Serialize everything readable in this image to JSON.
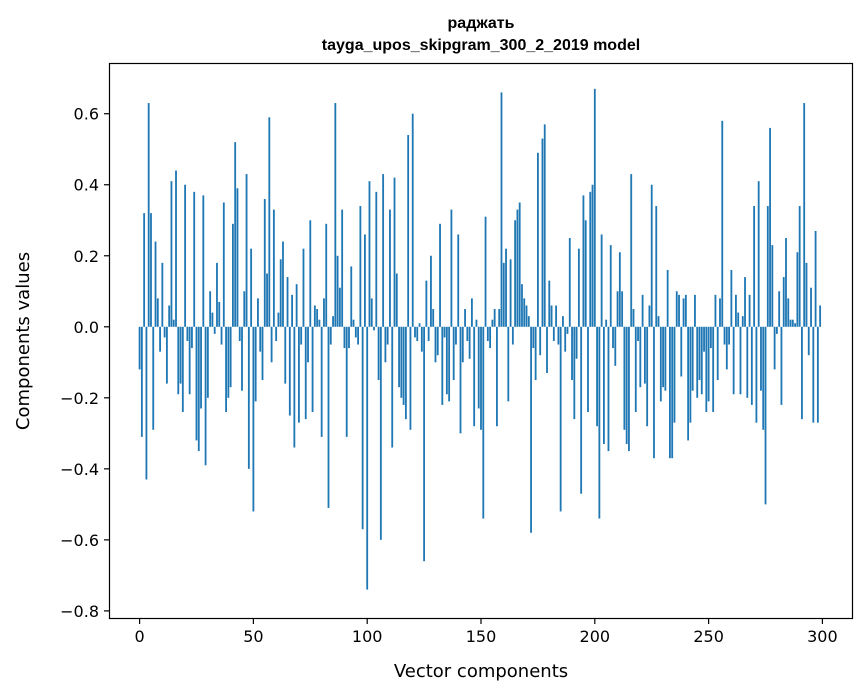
{
  "chart_data": {
    "type": "bar",
    "title": "раджать",
    "subtitle": "tayga_upos_skipgram_300_2_2019 model",
    "xlabel": "Vector components",
    "ylabel": "Components values",
    "xlim": [
      -13,
      313
    ],
    "ylim": [
      -0.82,
      0.74
    ],
    "xticks": [
      0,
      50,
      100,
      150,
      200,
      250,
      300
    ],
    "yticks": [
      -0.8,
      -0.6,
      -0.4,
      -0.2,
      0.0,
      0.2,
      0.4,
      0.6
    ],
    "ytick_labels": [
      "−0.8",
      "−0.6",
      "−0.4",
      "−0.2",
      "0.0",
      "0.2",
      "0.4",
      "0.6"
    ],
    "bar_color": "#1f77b4",
    "grid": false,
    "x": "0..299",
    "values": [
      -0.12,
      -0.31,
      0.32,
      -0.43,
      0.63,
      0.32,
      -0.29,
      0.24,
      0.08,
      -0.07,
      0.18,
      -0.03,
      -0.16,
      0.06,
      0.41,
      0.02,
      0.44,
      -0.19,
      -0.16,
      -0.24,
      0.4,
      -0.04,
      -0.19,
      -0.06,
      0.38,
      -0.32,
      -0.35,
      -0.23,
      0.37,
      -0.39,
      -0.2,
      0.1,
      0.04,
      -0.02,
      0.18,
      0.07,
      -0.05,
      0.35,
      -0.24,
      -0.2,
      -0.17,
      0.29,
      0.52,
      0.39,
      -0.04,
      -0.18,
      0.1,
      0.43,
      -0.4,
      0.22,
      -0.52,
      -0.21,
      0.08,
      -0.07,
      -0.15,
      0.36,
      0.15,
      0.59,
      -0.1,
      0.33,
      -0.04,
      0.04,
      0.19,
      0.24,
      -0.16,
      0.14,
      -0.25,
      0.09,
      -0.34,
      0.12,
      -0.27,
      -0.05,
      0.22,
      -0.26,
      -0.1,
      0.3,
      -0.24,
      0.06,
      0.05,
      0.02,
      -0.31,
      0.08,
      0.29,
      -0.51,
      -0.05,
      0.03,
      0.63,
      0.2,
      0.11,
      0.33,
      -0.06,
      -0.31,
      -0.06,
      0.17,
      0.02,
      -0.03,
      -0.05,
      0.34,
      -0.57,
      0.26,
      -0.74,
      0.41,
      0.08,
      -0.01,
      0.38,
      -0.15,
      -0.6,
      0.43,
      -0.1,
      -0.05,
      0.33,
      -0.34,
      0.42,
      0.15,
      -0.17,
      -0.2,
      -0.22,
      -0.26,
      0.54,
      -0.29,
      0.6,
      -0.03,
      -0.04,
      0.01,
      -0.07,
      -0.66,
      0.13,
      -0.04,
      0.2,
      0.05,
      -0.1,
      -0.08,
      0.29,
      -0.22,
      -0.03,
      -0.19,
      -0.21,
      0.33,
      -0.15,
      -0.05,
      0.26,
      -0.3,
      -0.1,
      0.05,
      -0.04,
      -0.09,
      0.08,
      -0.28,
      0.02,
      -0.23,
      -0.29,
      -0.54,
      0.31,
      -0.04,
      -0.06,
      0.02,
      0.05,
      -0.28,
      0.05,
      0.66,
      0.18,
      0.22,
      -0.21,
      0.19,
      -0.05,
      0.3,
      0.33,
      0.35,
      0.12,
      0.08,
      0.06,
      0.03,
      -0.58,
      -0.06,
      -0.15,
      0.49,
      -0.08,
      0.53,
      0.57,
      -0.13,
      0.13,
      0.06,
      -0.04,
      0.06,
      -0.05,
      -0.52,
      0.03,
      -0.07,
      -0.02,
      0.25,
      -0.15,
      -0.26,
      -0.09,
      0.22,
      -0.47,
      0.37,
      0.3,
      -0.24,
      0.38,
      0.4,
      0.67,
      -0.28,
      -0.54,
      0.26,
      -0.33,
      0.02,
      -0.35,
      0.23,
      -0.06,
      -0.11,
      0.1,
      0.21,
      0.1,
      -0.29,
      -0.33,
      -0.35,
      0.43,
      0.05,
      -0.24,
      -0.04,
      -0.17,
      0.09,
      -0.16,
      -0.28,
      0.06,
      0.4,
      -0.37,
      0.34,
      0.03,
      -0.21,
      -0.17,
      -0.18,
      0.16,
      -0.37,
      -0.37,
      -0.27,
      0.1,
      0.09,
      -0.14,
      0.08,
      0.09,
      -0.32,
      -0.27,
      -0.18,
      0.09,
      -0.2,
      -0.15,
      -0.19,
      -0.07,
      -0.24,
      -0.21,
      -0.06,
      -0.24,
      0.09,
      -0.15,
      0.08,
      0.58,
      -0.05,
      -0.12,
      -0.05,
      0.16,
      -0.19,
      0.09,
      0.04,
      -0.19,
      0.03,
      0.14,
      -0.2,
      0.09,
      -0.22,
      0.34,
      -0.27,
      0.41,
      -0.18,
      -0.29,
      -0.5,
      0.34,
      0.56,
      0.23,
      -0.12,
      -0.02,
      0.1,
      -0.22,
      0.14,
      0.25,
      0.08,
      0.02,
      0.02,
      0.01,
      0.21,
      0.34,
      -0.26,
      0.63,
      0.18,
      -0.08,
      0.11,
      -0.27,
      0.27,
      -0.27,
      0.06
    ]
  }
}
